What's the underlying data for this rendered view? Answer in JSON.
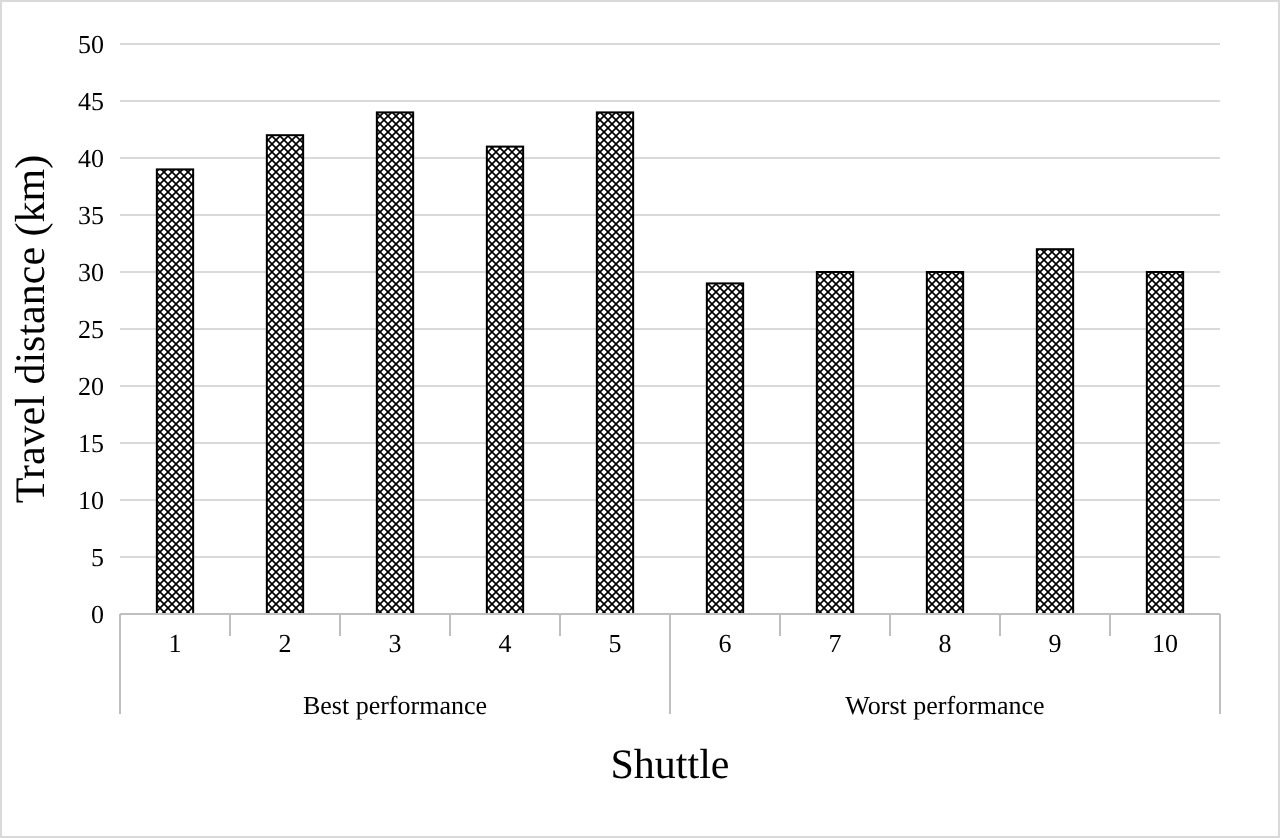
{
  "chart_data": {
    "type": "bar",
    "xlabel": "Shuttle",
    "ylabel": "Travel distance (km)",
    "categories": [
      "1",
      "2",
      "3",
      "4",
      "5",
      "6",
      "7",
      "8",
      "9",
      "10"
    ],
    "values": [
      39,
      42,
      44,
      41,
      44,
      29,
      30,
      30,
      32,
      30
    ],
    "color": "#000000",
    "ylim": [
      0,
      50
    ],
    "yticks": [
      0,
      5,
      10,
      15,
      20,
      25,
      30,
      35,
      40,
      45,
      50
    ],
    "grid": "y",
    "annotations": [
      "Best performance",
      "Worst performance"
    ]
  }
}
